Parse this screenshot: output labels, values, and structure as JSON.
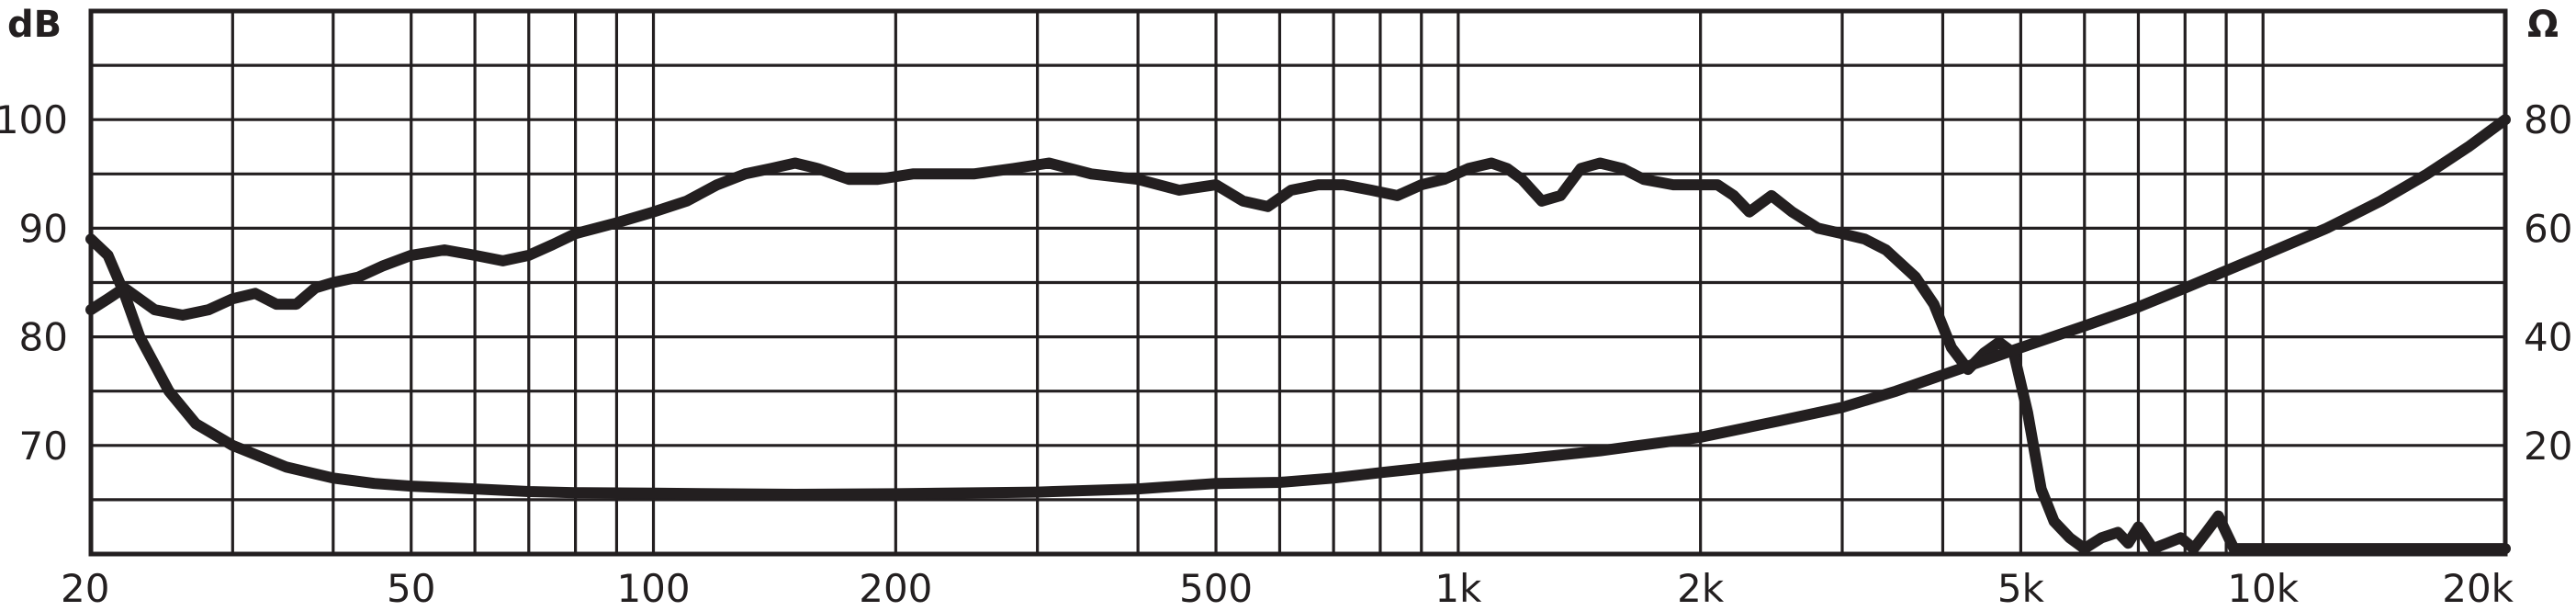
{
  "chart_data": {
    "type": "line",
    "x_scale": "log",
    "xlim": [
      20,
      20000
    ],
    "ylim": [
      60,
      110
    ],
    "y2lim": [
      0,
      100
    ],
    "grid": true,
    "ylabel": "dB",
    "y2label": "Ω",
    "x_ticks": [
      {
        "value": 20,
        "label": "20"
      },
      {
        "value": 50,
        "label": "50"
      },
      {
        "value": 100,
        "label": "100"
      },
      {
        "value": 200,
        "label": "200"
      },
      {
        "value": 500,
        "label": "500"
      },
      {
        "value": 1000,
        "label": "1k"
      },
      {
        "value": 2000,
        "label": "2k"
      },
      {
        "value": 5000,
        "label": "5k"
      },
      {
        "value": 10000,
        "label": "10k"
      },
      {
        "value": 20000,
        "label": "20k"
      }
    ],
    "y_ticks": [
      {
        "value": 70,
        "label": "70"
      },
      {
        "value": 80,
        "label": "80"
      },
      {
        "value": 90,
        "label": "90"
      },
      {
        "value": 100,
        "label": "100"
      }
    ],
    "y2_ticks": [
      {
        "value": 20,
        "label": "20"
      },
      {
        "value": 40,
        "label": "40"
      },
      {
        "value": 60,
        "label": "60"
      },
      {
        "value": 80,
        "label": "80"
      }
    ],
    "series": [
      {
        "axis": "y",
        "points": [
          [
            20,
            82.5
          ],
          [
            21,
            83.5
          ],
          [
            22,
            84.5
          ],
          [
            24,
            82.5
          ],
          [
            26,
            82
          ],
          [
            28,
            82.5
          ],
          [
            30,
            83.5
          ],
          [
            32,
            84
          ],
          [
            34,
            83
          ],
          [
            36,
            83
          ],
          [
            38,
            84.5
          ],
          [
            40,
            85
          ],
          [
            43,
            85.5
          ],
          [
            46,
            86.5
          ],
          [
            50,
            87.5
          ],
          [
            55,
            88
          ],
          [
            60,
            87.5
          ],
          [
            65,
            87
          ],
          [
            70,
            87.5
          ],
          [
            75,
            88.5
          ],
          [
            80,
            89.5
          ],
          [
            90,
            90.5
          ],
          [
            100,
            91.5
          ],
          [
            110,
            92.5
          ],
          [
            120,
            94
          ],
          [
            130,
            95
          ],
          [
            140,
            95.5
          ],
          [
            150,
            96
          ],
          [
            160,
            95.5
          ],
          [
            175,
            94.5
          ],
          [
            190,
            94.5
          ],
          [
            210,
            95
          ],
          [
            250,
            95
          ],
          [
            280,
            95.5
          ],
          [
            310,
            96
          ],
          [
            350,
            95
          ],
          [
            400,
            94.5
          ],
          [
            450,
            93.5
          ],
          [
            500,
            94
          ],
          [
            540,
            92.5
          ],
          [
            580,
            92
          ],
          [
            620,
            93.5
          ],
          [
            670,
            94
          ],
          [
            720,
            94
          ],
          [
            780,
            93.5
          ],
          [
            840,
            93
          ],
          [
            900,
            94
          ],
          [
            960,
            94.5
          ],
          [
            1030,
            95.5
          ],
          [
            1100,
            96
          ],
          [
            1150,
            95.5
          ],
          [
            1200,
            94.5
          ],
          [
            1270,
            92.5
          ],
          [
            1340,
            93
          ],
          [
            1420,
            95.5
          ],
          [
            1500,
            96
          ],
          [
            1600,
            95.5
          ],
          [
            1700,
            94.5
          ],
          [
            1850,
            94
          ],
          [
            2000,
            94
          ],
          [
            2100,
            94
          ],
          [
            2200,
            93
          ],
          [
            2300,
            91.5
          ],
          [
            2450,
            93
          ],
          [
            2600,
            91.5
          ],
          [
            2800,
            90
          ],
          [
            3000,
            89.5
          ],
          [
            3200,
            89
          ],
          [
            3400,
            88
          ],
          [
            3700,
            85.5
          ],
          [
            3900,
            83
          ],
          [
            4100,
            79
          ],
          [
            4300,
            77
          ],
          [
            4500,
            78.5
          ],
          [
            4700,
            79.5
          ],
          [
            4900,
            78.5
          ],
          [
            5100,
            73
          ],
          [
            5300,
            66
          ],
          [
            5500,
            63
          ],
          [
            5750,
            61.5
          ],
          [
            6000,
            60.5
          ],
          [
            6300,
            61.5
          ],
          [
            6600,
            62
          ],
          [
            6800,
            61
          ],
          [
            7000,
            62.5
          ],
          [
            7300,
            60.5
          ],
          [
            7600,
            61
          ],
          [
            7900,
            61.5
          ],
          [
            8200,
            60.5
          ],
          [
            8500,
            62
          ],
          [
            8800,
            63.5
          ],
          [
            9200,
            60.5
          ],
          [
            10000,
            60.5
          ],
          [
            20000,
            60.5
          ]
        ]
      },
      {
        "axis": "y2",
        "points": [
          [
            20,
            58
          ],
          [
            21,
            55
          ],
          [
            22,
            48
          ],
          [
            23,
            40
          ],
          [
            25,
            30
          ],
          [
            27,
            24
          ],
          [
            30,
            20
          ],
          [
            35,
            16
          ],
          [
            40,
            14
          ],
          [
            45,
            13
          ],
          [
            50,
            12.5
          ],
          [
            60,
            12
          ],
          [
            70,
            11.5
          ],
          [
            80,
            11.3
          ],
          [
            100,
            11.2
          ],
          [
            150,
            11
          ],
          [
            200,
            11.1
          ],
          [
            300,
            11.4
          ],
          [
            400,
            12
          ],
          [
            500,
            13
          ],
          [
            600,
            13.2
          ],
          [
            700,
            14
          ],
          [
            800,
            15
          ],
          [
            1000,
            16.5
          ],
          [
            1200,
            17.5
          ],
          [
            1500,
            19
          ],
          [
            2000,
            21.5
          ],
          [
            2500,
            24.5
          ],
          [
            3000,
            27
          ],
          [
            3500,
            30
          ],
          [
            4000,
            33
          ],
          [
            5000,
            38
          ],
          [
            6000,
            42
          ],
          [
            7000,
            45.5
          ],
          [
            8000,
            49
          ],
          [
            10000,
            55
          ],
          [
            12000,
            60
          ],
          [
            14000,
            65
          ],
          [
            16000,
            70
          ],
          [
            18000,
            75
          ],
          [
            20000,
            80
          ]
        ]
      }
    ]
  }
}
